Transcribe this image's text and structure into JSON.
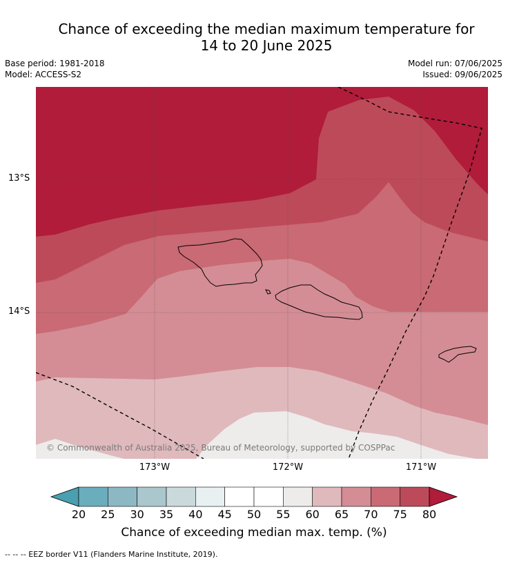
{
  "title_line1": "Chance of exceeding the median maximum temperature for",
  "title_line2": "14 to 20 June 2025",
  "base_period": "Base period: 1981-2018",
  "model": "Model: ACCESS-S2",
  "model_run": "Model run: 07/06/2025",
  "issued": "Issued: 09/06/2025",
  "lat_labels": [
    "13°S",
    "14°S"
  ],
  "lon_labels": [
    "173°W",
    "172°W",
    "171°W"
  ],
  "copyright": "© Commonwealth of Australia 2025, Bureau of Meteorology, supported by COSPPac",
  "colorbar": {
    "ticks": [
      "20",
      "25",
      "30",
      "35",
      "40",
      "45",
      "50",
      "55",
      "60",
      "65",
      "70",
      "75",
      "80"
    ],
    "colors": [
      "#4a9fb0",
      "#6aadbd",
      "#8cb8c4",
      "#a9c7cc",
      "#cad9dc",
      "#e8f0f2",
      "#ffffff",
      "#ffffff",
      "#eeeceb",
      "#e0b9bd",
      "#d48d94",
      "#c96a75",
      "#bd4a59",
      "#b01c3a"
    ],
    "label": "Chance of exceeding median max. temp. (%)"
  },
  "footer": "--  --  -- EEZ border V11 (Flanders Marine Institute, 2019)."
}
